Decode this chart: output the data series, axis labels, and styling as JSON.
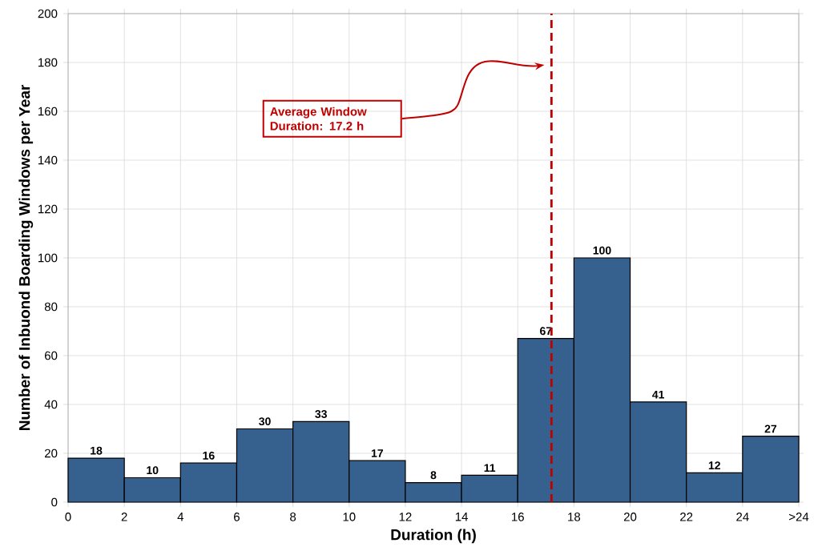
{
  "chart_data": {
    "type": "histogram",
    "xlabel": "Duration (h)",
    "ylabel": "Number of Inbuond Boarding Windows per Year",
    "bins": [
      0,
      2,
      4,
      6,
      8,
      10,
      12,
      14,
      16,
      18,
      20,
      22,
      24,
      26
    ],
    "values": [
      18,
      10,
      16,
      30,
      33,
      17,
      8,
      11,
      67,
      100,
      41,
      12,
      27
    ],
    "color": "#36618f",
    "data_labels": true,
    "xlim": [
      0,
      26
    ],
    "xticks": [
      0,
      2,
      4,
      6,
      8,
      10,
      12,
      14,
      16,
      18,
      20,
      22,
      24,
      {
        "value": 26,
        "label": ">24"
      }
    ],
    "ylim": [
      0,
      200
    ],
    "yticks": [
      0,
      20,
      40,
      60,
      80,
      100,
      120,
      140,
      160,
      180,
      200
    ],
    "grid": true,
    "ref_lines": [
      {
        "axis": "x",
        "value": 17.2,
        "label": "Average Window Duration: 17.2 h",
        "color": "#c00000",
        "line_style": "dashed"
      }
    ]
  }
}
